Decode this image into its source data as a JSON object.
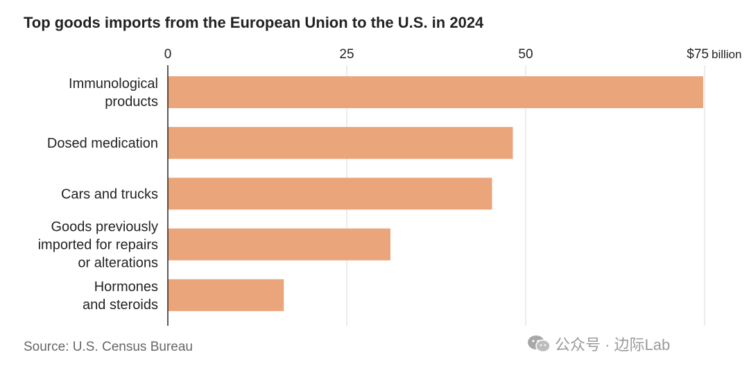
{
  "chart_data": {
    "type": "bar",
    "orientation": "horizontal",
    "title": "Top goods imports from the European Union to the U.S. in 2024",
    "categories": [
      [
        "Immunological",
        "products"
      ],
      [
        "Dosed medication"
      ],
      [
        "Cars and trucks"
      ],
      [
        "Goods previously",
        "imported for repairs",
        "or alterations"
      ],
      [
        "Hormones",
        "and steroids"
      ]
    ],
    "values": [
      74.8,
      48.2,
      45.3,
      31.1,
      16.2
    ],
    "xlim": [
      0,
      75
    ],
    "ticks": [
      {
        "value": 0,
        "label": "0"
      },
      {
        "value": 25,
        "label": "25"
      },
      {
        "value": 50,
        "label": "50"
      },
      {
        "value": 75,
        "label": "$75"
      }
    ],
    "tick_unit_suffix": "billion",
    "bar_color": "#eba57a",
    "grid": true
  },
  "footer": {
    "source": "Source: U.S. Census Bureau",
    "watermark": "公众号 · 边际Lab"
  }
}
